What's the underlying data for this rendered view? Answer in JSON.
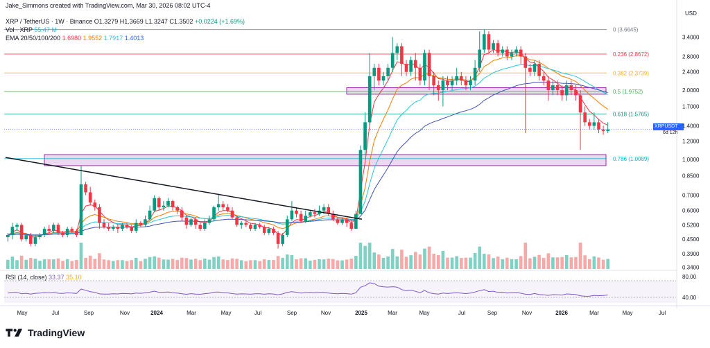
{
  "header": {
    "credit": "Jake_Simmons created with TradingView.com, Mar 30, 2026 08:02 UTC-4",
    "currency": "USD"
  },
  "legend": {
    "symbol": "XRP / TetherUS · 1W · Binance",
    "open": "O1.3279",
    "high": "H1.3669",
    "low": "L1.3247",
    "close": "C1.3502",
    "change": "+0.0224 (+1.69%)",
    "vol_label": "Vol · XRP",
    "vol_value": "55.47 M",
    "ema_label": "EMA 20/50/100/200",
    "ema20": "1.6980",
    "ema50": "1.9552",
    "ema100": "1.7917",
    "ema200": "1.4013"
  },
  "rsi": {
    "label": "RSI (14, close)",
    "value": "33.37",
    "ma": "35.10",
    "ticks": [
      "80.00",
      "40.00"
    ]
  },
  "price_tag": {
    "symbol": "XRPUSDT",
    "price": "1.3502",
    "timer": "6d 12h"
  },
  "footer": {
    "brand": "TradingView"
  },
  "colors": {
    "up": "#089981",
    "down": "#f23645",
    "upVol": "#7fd1c4",
    "downVol": "#f7a9a7"
  },
  "chart_data": {
    "type": "candlestick",
    "title": "XRP / TetherUS · 1W · Binance",
    "y_axis": {
      "scale": "log",
      "ticks": [
        "3.4000",
        "2.8000",
        "2.4000",
        "2.0000",
        "1.7000",
        "1.4000",
        "1.2000",
        "1.0000",
        "0.8500",
        "0.7000",
        "0.6000",
        "0.5200",
        "0.4500",
        "0.3900",
        "0.3400"
      ],
      "range": [
        0.33,
        4.0
      ]
    },
    "x_axis": {
      "ticks": [
        "May",
        "Jul",
        "Sep",
        "Nov",
        "2024",
        "Mar",
        "May",
        "Jul",
        "Sep",
        "Nov",
        "2025",
        "Mar",
        "May",
        "Jul",
        "Sep",
        "Nov",
        "2026",
        "Mar",
        "May",
        "Jul"
      ]
    },
    "fib_levels": [
      {
        "label": "0 (3.6645)",
        "value": 3.6645,
        "color": "#787b86"
      },
      {
        "label": "0.236 (2.8672)",
        "value": 2.8672,
        "color": "#f23645"
      },
      {
        "label": "0.382 (2.3739)",
        "value": 2.3739,
        "color": "#f9a825"
      },
      {
        "label": "0.5 (1.9752)",
        "value": 1.9752,
        "color": "#4caf50"
      },
      {
        "label": "0.618 (1.5765)",
        "value": 1.5765,
        "color": "#089981"
      },
      {
        "label": "0.786 (1.0089)",
        "value": 1.0089,
        "color": "#00bcd4"
      }
    ],
    "zones": [
      {
        "from": 0.94,
        "to": 1.05
      },
      {
        "from": 1.92,
        "to": 2.05
      }
    ],
    "candles": [
      [
        0.46,
        0.47,
        0.44,
        0.48
      ],
      [
        0.47,
        0.51,
        0.45,
        0.53
      ],
      [
        0.51,
        0.52,
        0.49,
        0.53
      ],
      [
        0.52,
        0.45,
        0.44,
        0.53
      ],
      [
        0.45,
        0.47,
        0.44,
        0.48
      ],
      [
        0.47,
        0.43,
        0.42,
        0.48
      ],
      [
        0.43,
        0.46,
        0.42,
        0.47
      ],
      [
        0.46,
        0.47,
        0.45,
        0.48
      ],
      [
        0.47,
        0.5,
        0.46,
        0.51
      ],
      [
        0.5,
        0.49,
        0.47,
        0.52
      ],
      [
        0.49,
        0.52,
        0.48,
        0.53
      ],
      [
        0.52,
        0.48,
        0.47,
        0.53
      ],
      [
        0.48,
        0.47,
        0.46,
        0.49
      ],
      [
        0.47,
        0.5,
        0.46,
        0.51
      ],
      [
        0.5,
        0.49,
        0.48,
        0.51
      ],
      [
        0.49,
        0.47,
        0.46,
        0.5
      ],
      [
        0.47,
        0.78,
        0.47,
        0.94
      ],
      [
        0.78,
        0.72,
        0.7,
        0.8
      ],
      [
        0.72,
        0.65,
        0.63,
        0.76
      ],
      [
        0.65,
        0.62,
        0.6,
        0.67
      ],
      [
        0.62,
        0.53,
        0.5,
        0.64
      ],
      [
        0.53,
        0.51,
        0.5,
        0.55
      ],
      [
        0.51,
        0.5,
        0.49,
        0.53
      ],
      [
        0.5,
        0.51,
        0.49,
        0.52
      ],
      [
        0.51,
        0.5,
        0.48,
        0.52
      ],
      [
        0.5,
        0.52,
        0.49,
        0.53
      ],
      [
        0.52,
        0.51,
        0.5,
        0.53
      ],
      [
        0.51,
        0.49,
        0.48,
        0.52
      ],
      [
        0.49,
        0.53,
        0.48,
        0.55
      ],
      [
        0.53,
        0.52,
        0.51,
        0.54
      ],
      [
        0.52,
        0.55,
        0.51,
        0.57
      ],
      [
        0.55,
        0.6,
        0.54,
        0.63
      ],
      [
        0.6,
        0.68,
        0.59,
        0.7
      ],
      [
        0.68,
        0.62,
        0.6,
        0.69
      ],
      [
        0.62,
        0.63,
        0.6,
        0.66
      ],
      [
        0.63,
        0.66,
        0.62,
        0.68
      ],
      [
        0.66,
        0.62,
        0.6,
        0.67
      ],
      [
        0.62,
        0.6,
        0.58,
        0.63
      ],
      [
        0.6,
        0.56,
        0.54,
        0.62
      ],
      [
        0.56,
        0.52,
        0.5,
        0.57
      ],
      [
        0.52,
        0.55,
        0.51,
        0.56
      ],
      [
        0.55,
        0.52,
        0.5,
        0.56
      ],
      [
        0.52,
        0.5,
        0.49,
        0.53
      ],
      [
        0.5,
        0.53,
        0.49,
        0.55
      ],
      [
        0.53,
        0.55,
        0.52,
        0.57
      ],
      [
        0.55,
        0.62,
        0.54,
        0.63
      ],
      [
        0.62,
        0.64,
        0.6,
        0.71
      ],
      [
        0.64,
        0.62,
        0.6,
        0.66
      ],
      [
        0.62,
        0.6,
        0.59,
        0.64
      ],
      [
        0.6,
        0.56,
        0.55,
        0.62
      ],
      [
        0.56,
        0.52,
        0.51,
        0.57
      ],
      [
        0.52,
        0.53,
        0.5,
        0.54
      ],
      [
        0.53,
        0.52,
        0.51,
        0.54
      ],
      [
        0.52,
        0.5,
        0.49,
        0.53
      ],
      [
        0.5,
        0.52,
        0.49,
        0.53
      ],
      [
        0.52,
        0.51,
        0.5,
        0.53
      ],
      [
        0.51,
        0.48,
        0.47,
        0.52
      ],
      [
        0.48,
        0.5,
        0.47,
        0.51
      ],
      [
        0.5,
        0.48,
        0.47,
        0.51
      ],
      [
        0.48,
        0.43,
        0.41,
        0.49
      ],
      [
        0.43,
        0.47,
        0.42,
        0.48
      ],
      [
        0.47,
        0.55,
        0.46,
        0.57
      ],
      [
        0.55,
        0.6,
        0.54,
        0.66
      ],
      [
        0.6,
        0.58,
        0.56,
        0.62
      ],
      [
        0.58,
        0.54,
        0.53,
        0.6
      ],
      [
        0.54,
        0.57,
        0.53,
        0.6
      ],
      [
        0.57,
        0.59,
        0.56,
        0.6
      ],
      [
        0.59,
        0.58,
        0.56,
        0.61
      ],
      [
        0.58,
        0.6,
        0.57,
        0.63
      ],
      [
        0.6,
        0.62,
        0.58,
        0.64
      ],
      [
        0.62,
        0.58,
        0.57,
        0.64
      ],
      [
        0.58,
        0.55,
        0.54,
        0.6
      ],
      [
        0.55,
        0.53,
        0.52,
        0.56
      ],
      [
        0.53,
        0.55,
        0.52,
        0.56
      ],
      [
        0.55,
        0.53,
        0.51,
        0.56
      ],
      [
        0.53,
        0.5,
        0.49,
        0.55
      ],
      [
        0.5,
        0.58,
        0.5,
        0.6
      ],
      [
        0.58,
        1.1,
        0.58,
        1.15
      ],
      [
        1.1,
        1.45,
        1.05,
        1.6
      ],
      [
        1.45,
        2.3,
        1.4,
        2.9
      ],
      [
        2.3,
        2.5,
        2.0,
        2.6
      ],
      [
        2.5,
        2.2,
        2.1,
        2.6
      ],
      [
        2.2,
        2.3,
        2.1,
        2.4
      ],
      [
        2.3,
        2.5,
        2.2,
        2.6
      ],
      [
        2.5,
        2.9,
        2.4,
        3.4
      ],
      [
        2.9,
        3.1,
        2.7,
        3.2
      ],
      [
        3.1,
        2.6,
        2.3,
        3.2
      ],
      [
        2.6,
        2.4,
        2.3,
        2.7
      ],
      [
        2.4,
        2.7,
        2.3,
        2.8
      ],
      [
        2.7,
        2.5,
        2.2,
        2.9
      ],
      [
        2.5,
        2.2,
        2.1,
        2.6
      ],
      [
        2.2,
        2.9,
        2.1,
        3.0
      ],
      [
        2.9,
        2.3,
        2.0,
        3.0
      ],
      [
        2.3,
        2.1,
        1.9,
        2.4
      ],
      [
        2.1,
        2.0,
        1.8,
        2.2
      ],
      [
        2.0,
        2.2,
        1.7,
        2.3
      ],
      [
        2.2,
        2.1,
        2.0,
        2.3
      ],
      [
        2.1,
        2.2,
        2.0,
        2.3
      ],
      [
        2.2,
        2.3,
        2.1,
        2.5
      ],
      [
        2.3,
        2.2,
        2.1,
        2.4
      ],
      [
        2.2,
        2.1,
        2.0,
        2.3
      ],
      [
        2.1,
        2.2,
        2.0,
        2.3
      ],
      [
        2.2,
        2.5,
        2.1,
        2.7
      ],
      [
        2.5,
        3.0,
        2.4,
        3.6
      ],
      [
        3.0,
        3.5,
        2.9,
        3.66
      ],
      [
        3.5,
        3.0,
        2.9,
        3.6
      ],
      [
        3.0,
        3.2,
        2.9,
        3.3
      ],
      [
        3.2,
        2.9,
        2.8,
        3.3
      ],
      [
        2.9,
        3.0,
        2.8,
        3.1
      ],
      [
        3.0,
        2.8,
        2.7,
        3.1
      ],
      [
        2.8,
        2.9,
        2.7,
        3.0
      ],
      [
        2.9,
        3.0,
        2.8,
        3.1
      ],
      [
        3.0,
        2.8,
        2.6,
        3.1
      ],
      [
        2.8,
        2.5,
        1.3,
        2.9
      ],
      [
        2.5,
        2.4,
        2.3,
        2.6
      ],
      [
        2.4,
        2.6,
        2.3,
        2.7
      ],
      [
        2.6,
        2.3,
        2.2,
        2.7
      ],
      [
        2.3,
        2.2,
        2.1,
        2.4
      ],
      [
        2.2,
        2.0,
        1.8,
        2.3
      ],
      [
        2.0,
        2.1,
        1.9,
        2.2
      ],
      [
        2.1,
        2.0,
        1.9,
        2.2
      ],
      [
        2.0,
        1.9,
        1.8,
        2.1
      ],
      [
        1.9,
        2.1,
        1.8,
        2.2
      ],
      [
        2.1,
        2.0,
        1.9,
        2.2
      ],
      [
        2.0,
        1.9,
        1.8,
        2.1
      ],
      [
        1.9,
        1.6,
        1.1,
        2.0
      ],
      [
        1.6,
        1.45,
        1.4,
        1.7
      ],
      [
        1.45,
        1.4,
        1.35,
        1.5
      ],
      [
        1.4,
        1.45,
        1.35,
        1.6
      ],
      [
        1.45,
        1.35,
        1.3,
        1.5
      ],
      [
        1.35,
        1.33,
        1.28,
        1.4
      ],
      [
        1.33,
        1.35,
        1.3,
        1.45
      ]
    ]
  }
}
